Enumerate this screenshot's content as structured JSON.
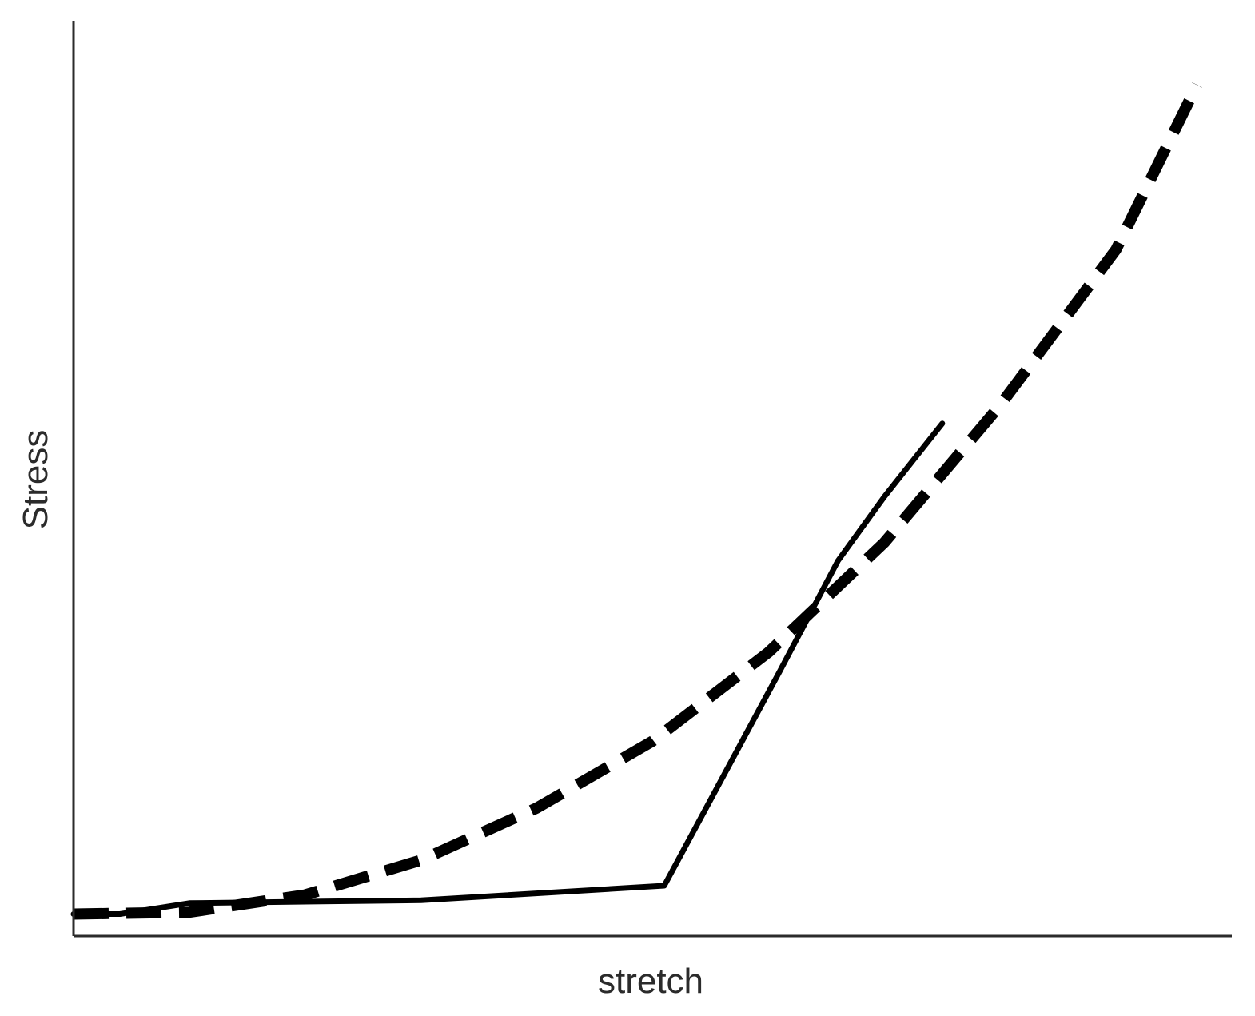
{
  "chart_data": {
    "type": "line",
    "title": "",
    "xlabel": "stretch",
    "ylabel": "Stress",
    "xlim": [
      0,
      1
    ],
    "ylim": [
      0,
      1
    ],
    "grid": false,
    "legend": "none",
    "axis_color": "#2b2b2b",
    "series": [
      {
        "style": "solid",
        "color": "#000000",
        "x": [
          0,
          0.04,
          0.1,
          0.3,
          0.51,
          0.61,
          0.66,
          0.7,
          0.75
        ],
        "y": [
          0.024,
          0.024,
          0.036,
          0.039,
          0.055,
          0.29,
          0.41,
          0.48,
          0.56
        ]
      },
      {
        "style": "dashed",
        "color": "#000000",
        "x": [
          0,
          0.1,
          0.2,
          0.3,
          0.4,
          0.5,
          0.6,
          0.7,
          0.8,
          0.9,
          0.97
        ],
        "y": [
          0.024,
          0.026,
          0.045,
          0.083,
          0.14,
          0.213,
          0.31,
          0.43,
          0.58,
          0.75,
          0.93
        ]
      }
    ]
  }
}
